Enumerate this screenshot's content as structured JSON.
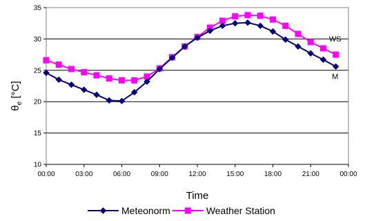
{
  "chart_data": {
    "type": "line",
    "xlabel": "Time",
    "ylabel_main": "θ",
    "ylabel_sub": "e",
    "ylabel_unit": " [°C]",
    "ylim": [
      10,
      35
    ],
    "yticks": [
      10,
      15,
      20,
      25,
      30,
      35
    ],
    "xlim": [
      0,
      24
    ],
    "xticks": [
      0,
      3,
      6,
      9,
      12,
      15,
      18,
      21,
      24
    ],
    "xtick_labels": [
      "00:00",
      "03:00",
      "06:00",
      "09:00",
      "12:00",
      "15:00",
      "18:00",
      "21:00",
      "00:00"
    ],
    "grid": "horizontal",
    "legend_position": "bottom",
    "x": [
      0,
      1,
      2,
      3,
      4,
      5,
      6,
      7,
      8,
      9,
      10,
      11,
      12,
      13,
      14,
      15,
      16,
      17,
      18,
      19,
      20,
      21,
      22,
      23
    ],
    "series": [
      {
        "name": "Meteonorm",
        "color": "#000080",
        "marker": "diamond",
        "annotation": "M",
        "values": [
          24.6,
          23.5,
          22.7,
          21.9,
          21.1,
          20.2,
          20.1,
          21.5,
          23.2,
          25.2,
          27.0,
          28.8,
          30.2,
          31.3,
          32.1,
          32.5,
          32.6,
          32.1,
          31.2,
          29.9,
          28.8,
          27.7,
          26.7,
          25.6
        ]
      },
      {
        "name": "Weather Station",
        "color": "#ff00ff",
        "marker": "square",
        "annotation": "WS",
        "values": [
          26.6,
          25.9,
          25.2,
          24.7,
          24.2,
          23.7,
          23.4,
          23.4,
          24.0,
          25.3,
          27.1,
          28.8,
          30.3,
          31.8,
          32.9,
          33.6,
          33.8,
          33.7,
          33.1,
          32.1,
          30.8,
          29.5,
          28.5,
          27.5
        ]
      }
    ]
  }
}
